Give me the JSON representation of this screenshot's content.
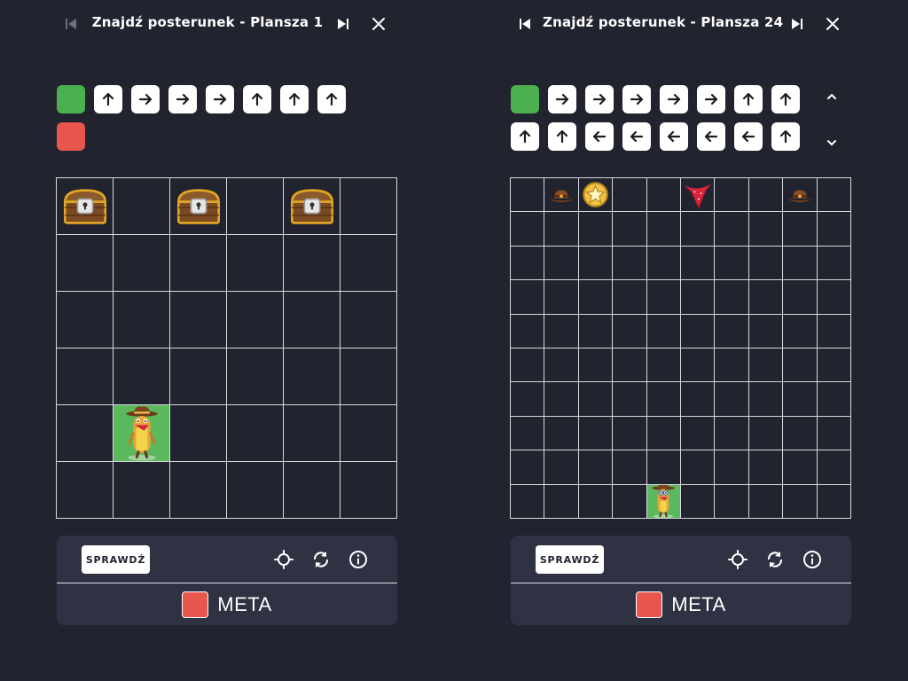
{
  "left_panel": {
    "title": "Znajdź posterunek - Plansza 1",
    "program_rows": [
      [
        "start",
        "up",
        "right",
        "right",
        "right",
        "up",
        "up",
        "up"
      ],
      [
        "stop"
      ]
    ],
    "board": {
      "rows": 6,
      "cols": 6,
      "items": [
        {
          "row": 0,
          "col": 0,
          "type": "treasure-chest"
        },
        {
          "row": 0,
          "col": 2,
          "type": "treasure-chest"
        },
        {
          "row": 0,
          "col": 4,
          "type": "treasure-chest"
        },
        {
          "row": 4,
          "col": 1,
          "type": "cowboy",
          "highlight": true
        }
      ]
    },
    "check_label": "SPRAWDŹ",
    "goal_label": "META",
    "goal_color": "#e8574d"
  },
  "right_panel": {
    "title": "Znajdź posterunek - Plansza 24",
    "program_rows": [
      [
        "start",
        "right",
        "right",
        "right",
        "right",
        "right",
        "up",
        "up"
      ],
      [
        "up",
        "up",
        "left",
        "left",
        "left",
        "left",
        "left",
        "up"
      ]
    ],
    "board": {
      "rows": 10,
      "cols": 10,
      "items": [
        {
          "row": 0,
          "col": 1,
          "type": "cowboy-hat"
        },
        {
          "row": 0,
          "col": 2,
          "type": "sheriff-badge"
        },
        {
          "row": 0,
          "col": 5,
          "type": "bandana"
        },
        {
          "row": 0,
          "col": 8,
          "type": "cowboy-hat"
        },
        {
          "row": 9,
          "col": 4,
          "type": "cowboy-small",
          "highlight": true
        }
      ]
    },
    "check_label": "SPRAWDŹ",
    "goal_label": "META",
    "goal_color": "#e8574d"
  },
  "colors": {
    "background": "#21232e",
    "panel": "#2f3243",
    "start_tile": "#4caf50",
    "stop_tile": "#e8574d",
    "highlight_cell": "#5cb85c",
    "grid_line": "#d7d9e0"
  }
}
